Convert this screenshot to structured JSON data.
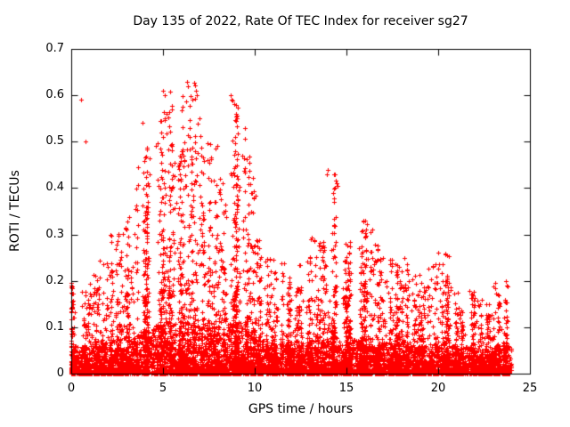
{
  "chart_data": {
    "type": "scatter",
    "title": "Day 135 of 2022, Rate Of TEC Index for receiver sg27",
    "xlabel": "GPS time / hours",
    "ylabel": "ROTI / TECUs",
    "xlim": [
      0,
      25
    ],
    "ylim": [
      0,
      0.7
    ],
    "xticks": [
      "0",
      "5",
      "10",
      "15",
      "20",
      "25"
    ],
    "yticks": [
      "0",
      "0.1",
      "0.2",
      "0.3",
      "0.4",
      "0.5",
      "0.6",
      "0.7"
    ],
    "grid": false,
    "legend": "none",
    "marker": "plus",
    "marker_color": "#ff0000",
    "marker_size_px": 5,
    "x_data_range": [
      0,
      24
    ],
    "bin_hours": 0.5,
    "envelope_max": [
      0.2,
      0.18,
      0.22,
      0.25,
      0.3,
      0.32,
      0.35,
      0.45,
      0.5,
      0.55,
      0.61,
      0.5,
      0.6,
      0.63,
      0.55,
      0.5,
      0.42,
      0.6,
      0.58,
      0.47,
      0.3,
      0.25,
      0.25,
      0.22,
      0.2,
      0.25,
      0.3,
      0.32,
      0.44,
      0.28,
      0.3,
      0.33,
      0.33,
      0.28,
      0.25,
      0.24,
      0.25,
      0.22,
      0.2,
      0.24,
      0.26,
      0.2,
      0.15,
      0.18,
      0.16,
      0.15,
      0.2,
      0.2
    ],
    "outliers": [
      [
        0.55,
        0.59
      ],
      [
        0.8,
        0.5
      ],
      [
        3.9,
        0.54
      ],
      [
        4.6,
        0.49
      ],
      [
        5.0,
        0.61
      ],
      [
        5.1,
        0.6
      ],
      [
        6.3,
        0.63
      ],
      [
        6.35,
        0.62
      ],
      [
        6.6,
        0.59
      ],
      [
        7.0,
        0.55
      ],
      [
        8.7,
        0.6
      ],
      [
        8.75,
        0.59
      ],
      [
        9.0,
        0.58
      ],
      [
        9.3,
        0.47
      ],
      [
        13.95,
        0.43
      ],
      [
        14.0,
        0.44
      ],
      [
        16.0,
        0.33
      ],
      [
        20.0,
        0.26
      ]
    ]
  }
}
